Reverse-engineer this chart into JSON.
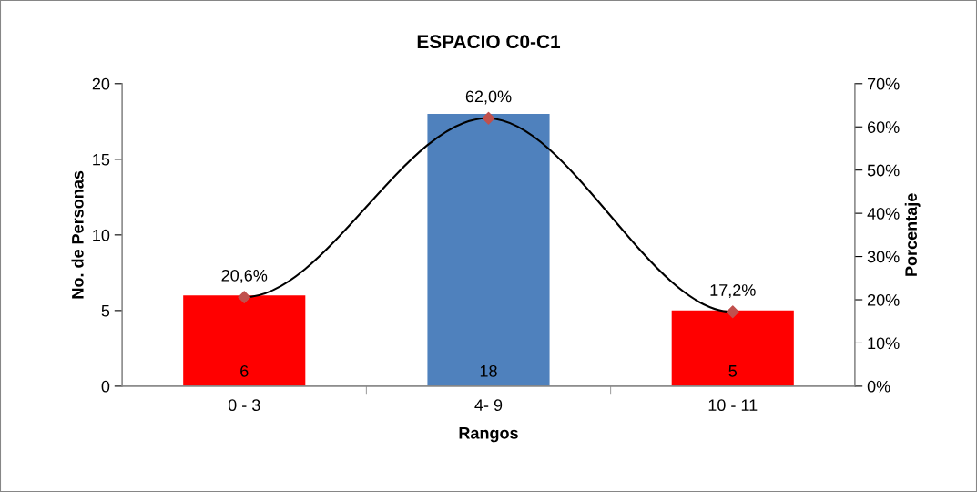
{
  "chart_data": {
    "type": "bar",
    "title": "ESPACIO C0-C1",
    "xlabel": "Rangos",
    "ylabel": "No. de Personas",
    "y2label": "Porcentaje",
    "categories": [
      "0 - 3",
      "4- 9",
      "10 - 11"
    ],
    "series": [
      {
        "colors": [
          "#ff0000",
          "#4f81bd",
          "#ff0000"
        ],
        "values": [
          6,
          18,
          5
        ],
        "value_labels": [
          "6",
          "18",
          "5"
        ]
      },
      {
        "type": "line",
        "axis": "y2",
        "color": "#000000",
        "colors": [
          "#c0504d",
          "#c0504d",
          "#c0504d"
        ],
        "marker": "diamond",
        "values": [
          20.6,
          62.0,
          17.2
        ],
        "value_labels": [
          "20,6%",
          "62,0%",
          "17,2%"
        ]
      }
    ],
    "ylim": [
      0,
      20
    ],
    "yticks": [
      0,
      5,
      10,
      15,
      20
    ],
    "y2lim": [
      0,
      70
    ],
    "y2ticks": [
      {
        "value": 0,
        "label": "0%"
      },
      {
        "value": 10,
        "label": "10%"
      },
      {
        "value": 20,
        "label": "20%"
      },
      {
        "value": 30,
        "label": "30%"
      },
      {
        "value": 40,
        "label": "40%"
      },
      {
        "value": 50,
        "label": "50%"
      },
      {
        "value": 60,
        "label": "60%"
      },
      {
        "value": 70,
        "label": "70%"
      }
    ],
    "grid": false,
    "legend": false
  }
}
